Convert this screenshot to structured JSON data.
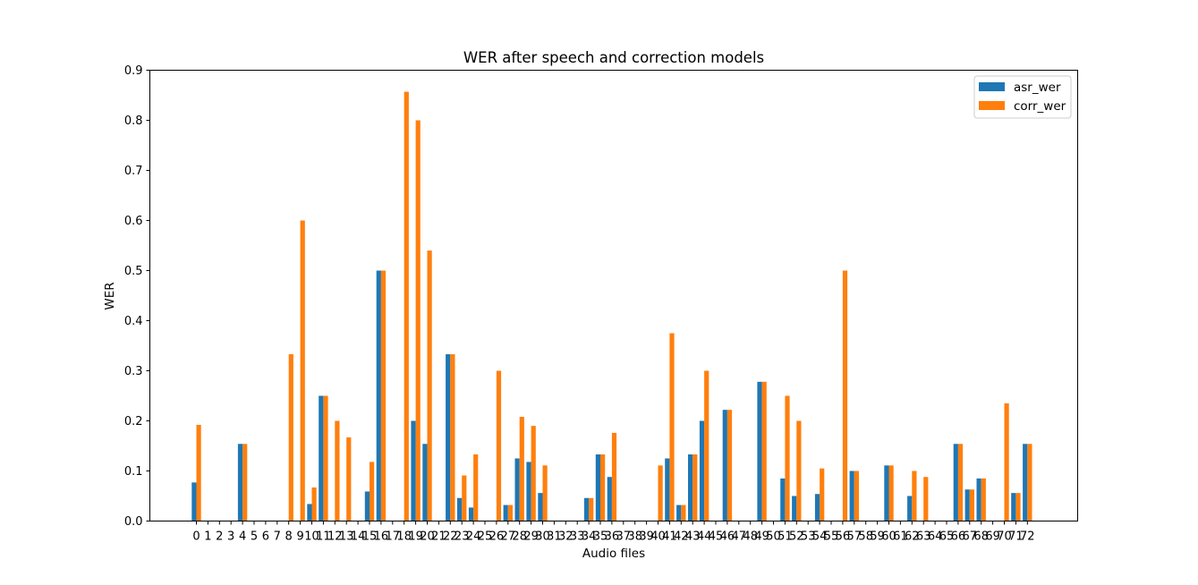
{
  "chart_data": {
    "type": "bar",
    "title": "WER after speech and correction models",
    "xlabel": "Audio files",
    "ylabel": "WER",
    "ylim": [
      0,
      0.9
    ],
    "yticks": [
      "0.0",
      "0.1",
      "0.2",
      "0.3",
      "0.4",
      "0.5",
      "0.6",
      "0.7",
      "0.8",
      "0.9"
    ],
    "categories": [
      "0",
      "1",
      "2",
      "3",
      "4",
      "5",
      "6",
      "7",
      "8",
      "9",
      "10",
      "11",
      "12",
      "13",
      "14",
      "15",
      "16",
      "17",
      "18",
      "19",
      "20",
      "21",
      "22",
      "23",
      "24",
      "25",
      "26",
      "27",
      "28",
      "29",
      "30",
      "31",
      "32",
      "33",
      "34",
      "35",
      "36",
      "37",
      "38",
      "39",
      "40",
      "41",
      "42",
      "43",
      "44",
      "45",
      "46",
      "47",
      "48",
      "49",
      "50",
      "51",
      "52",
      "53",
      "54",
      "55",
      "56",
      "57",
      "58",
      "59",
      "60",
      "61",
      "62",
      "63",
      "64",
      "65",
      "66",
      "67",
      "68",
      "69",
      "70",
      "71",
      "72"
    ],
    "series": [
      {
        "name": "asr_wer",
        "color": "#1f77b4",
        "values": [
          0.077,
          0,
          0,
          0,
          0.154,
          0,
          0,
          0,
          0,
          0,
          0.034,
          0.25,
          0,
          0,
          0,
          0.059,
          0.5,
          0,
          0,
          0.2,
          0.154,
          0,
          0.333,
          0.046,
          0.027,
          0,
          0,
          0.032,
          0.125,
          0.118,
          0.056,
          0,
          0,
          0,
          0.046,
          0.133,
          0.088,
          0,
          0,
          0,
          0,
          0.125,
          0.032,
          0.133,
          0.2,
          0,
          0.222,
          0,
          0,
          0.278,
          0,
          0.085,
          0.05,
          0,
          0.054,
          0,
          0,
          0.1,
          0,
          0,
          0.111,
          0,
          0.05,
          0,
          0,
          0,
          0.154,
          0.063,
          0.085,
          0,
          0,
          0.056,
          0.154
        ]
      },
      {
        "name": "corr_wer",
        "color": "#ff7f0e",
        "values": [
          0.192,
          0,
          0,
          0,
          0.154,
          0,
          0,
          0,
          0.333,
          0.6,
          0.067,
          0.25,
          0.2,
          0.167,
          0,
          0.118,
          0.5,
          0,
          0.857,
          0.8,
          0.54,
          0,
          0.333,
          0.091,
          0.133,
          0,
          0.3,
          0.032,
          0.208,
          0.19,
          0.111,
          0,
          0,
          0,
          0.046,
          0.133,
          0.176,
          0,
          0,
          0,
          0.111,
          0.375,
          0.032,
          0.133,
          0.3,
          0,
          0.222,
          0,
          0,
          0.278,
          0,
          0.25,
          0.2,
          0,
          0.105,
          0,
          0.5,
          0.1,
          0,
          0,
          0.111,
          0,
          0.1,
          0.088,
          0,
          0,
          0.154,
          0.063,
          0.085,
          0,
          0.235,
          0.056,
          0.154
        ]
      }
    ],
    "legend_position": "top-right",
    "grid": false
  }
}
